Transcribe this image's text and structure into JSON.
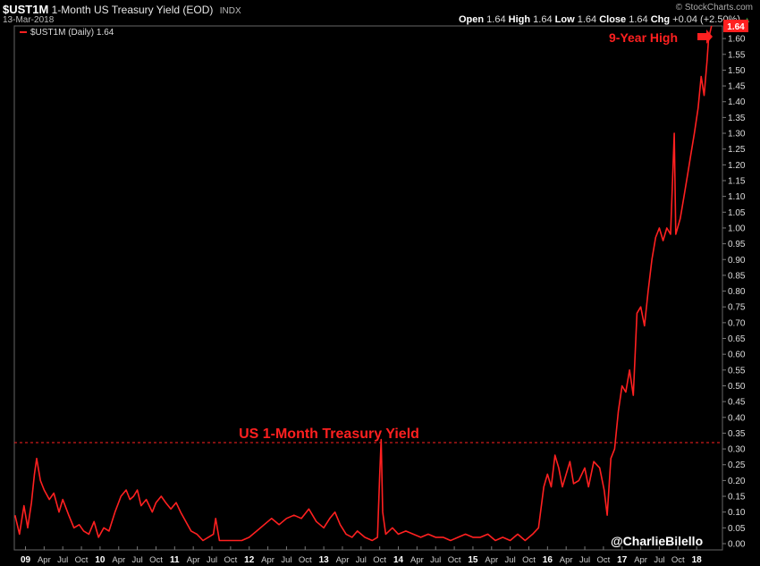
{
  "header": {
    "symbol": "$UST1M",
    "description": "1-Month US Treasury Yield (EOD)",
    "index": "INDX",
    "date": "13-Mar-2018",
    "brand": "© StockCharts.com",
    "open_label": "Open",
    "open": "1.64",
    "high_label": "High",
    "high": "1.64",
    "low_label": "Low",
    "low": "1.64",
    "close_label": "Close",
    "close": "1.64",
    "chg_label": "Chg",
    "chg": "+0.04 (+2.50%)",
    "up_arrow": "▲"
  },
  "legend": {
    "text": "$UST1M (Daily) 1.64"
  },
  "watermark": "@CharlieBilello",
  "colors": {
    "series": "#ff2020",
    "background": "#000000",
    "reference": "#ff2020",
    "price_tag": "#ff2020"
  },
  "chart_data": {
    "type": "line",
    "title": "US 1-Month Treasury Yield",
    "annotation": "9-Year High",
    "last_value_label": "1.64",
    "ylim": [
      0,
      1.66
    ],
    "reference_line": 0.32,
    "grid": false,
    "y_ticks": [
      "0.00",
      "0.05",
      "0.10",
      "0.15",
      "0.20",
      "0.25",
      "0.30",
      "0.35",
      "0.40",
      "0.45",
      "0.50",
      "0.55",
      "0.60",
      "0.65",
      "0.70",
      "0.75",
      "0.80",
      "0.85",
      "0.90",
      "0.95",
      "1.00",
      "1.05",
      "1.10",
      "1.15",
      "1.20",
      "1.25",
      "1.30",
      "1.35",
      "1.40",
      "1.45",
      "1.50",
      "1.55",
      "1.60"
    ],
    "x_ticks": [
      {
        "label": "09",
        "t": 2009.0,
        "year": true
      },
      {
        "label": "Apr",
        "t": 2009.25
      },
      {
        "label": "Jul",
        "t": 2009.5
      },
      {
        "label": "Oct",
        "t": 2009.75
      },
      {
        "label": "10",
        "t": 2010.0,
        "year": true
      },
      {
        "label": "Apr",
        "t": 2010.25
      },
      {
        "label": "Jul",
        "t": 2010.5
      },
      {
        "label": "Oct",
        "t": 2010.75
      },
      {
        "label": "11",
        "t": 2011.0,
        "year": true
      },
      {
        "label": "Apr",
        "t": 2011.25
      },
      {
        "label": "Jul",
        "t": 2011.5
      },
      {
        "label": "Oct",
        "t": 2011.75
      },
      {
        "label": "12",
        "t": 2012.0,
        "year": true
      },
      {
        "label": "Apr",
        "t": 2012.25
      },
      {
        "label": "Jul",
        "t": 2012.5
      },
      {
        "label": "Oct",
        "t": 2012.75
      },
      {
        "label": "13",
        "t": 2013.0,
        "year": true
      },
      {
        "label": "Apr",
        "t": 2013.25
      },
      {
        "label": "Jul",
        "t": 2013.5
      },
      {
        "label": "Oct",
        "t": 2013.75
      },
      {
        "label": "14",
        "t": 2014.0,
        "year": true
      },
      {
        "label": "Apr",
        "t": 2014.25
      },
      {
        "label": "Jul",
        "t": 2014.5
      },
      {
        "label": "Oct",
        "t": 2014.75
      },
      {
        "label": "15",
        "t": 2015.0,
        "year": true
      },
      {
        "label": "Apr",
        "t": 2015.25
      },
      {
        "label": "Jul",
        "t": 2015.5
      },
      {
        "label": "Oct",
        "t": 2015.75
      },
      {
        "label": "16",
        "t": 2016.0,
        "year": true
      },
      {
        "label": "Apr",
        "t": 2016.25
      },
      {
        "label": "Jul",
        "t": 2016.5
      },
      {
        "label": "Oct",
        "t": 2016.75
      },
      {
        "label": "17",
        "t": 2017.0,
        "year": true
      },
      {
        "label": "Apr",
        "t": 2017.25
      },
      {
        "label": "Jul",
        "t": 2017.5
      },
      {
        "label": "Oct",
        "t": 2017.75
      },
      {
        "label": "18",
        "t": 2018.0,
        "year": true
      }
    ],
    "series": [
      {
        "values": [
          [
            2008.86,
            0.09
          ],
          [
            2008.92,
            0.03
          ],
          [
            2008.98,
            0.12
          ],
          [
            2009.03,
            0.05
          ],
          [
            2009.08,
            0.13
          ],
          [
            2009.12,
            0.22
          ],
          [
            2009.15,
            0.27
          ],
          [
            2009.2,
            0.2
          ],
          [
            2009.25,
            0.17
          ],
          [
            2009.32,
            0.14
          ],
          [
            2009.38,
            0.16
          ],
          [
            2009.45,
            0.1
          ],
          [
            2009.5,
            0.14
          ],
          [
            2009.58,
            0.09
          ],
          [
            2009.65,
            0.05
          ],
          [
            2009.72,
            0.06
          ],
          [
            2009.78,
            0.04
          ],
          [
            2009.85,
            0.03
          ],
          [
            2009.92,
            0.07
          ],
          [
            2009.98,
            0.02
          ],
          [
            2010.05,
            0.05
          ],
          [
            2010.12,
            0.04
          ],
          [
            2010.2,
            0.1
          ],
          [
            2010.28,
            0.15
          ],
          [
            2010.35,
            0.17
          ],
          [
            2010.4,
            0.14
          ],
          [
            2010.45,
            0.15
          ],
          [
            2010.5,
            0.17
          ],
          [
            2010.55,
            0.12
          ],
          [
            2010.62,
            0.14
          ],
          [
            2010.7,
            0.1
          ],
          [
            2010.75,
            0.13
          ],
          [
            2010.82,
            0.15
          ],
          [
            2010.88,
            0.13
          ],
          [
            2010.95,
            0.11
          ],
          [
            2011.02,
            0.13
          ],
          [
            2011.08,
            0.1
          ],
          [
            2011.15,
            0.07
          ],
          [
            2011.22,
            0.04
          ],
          [
            2011.3,
            0.03
          ],
          [
            2011.38,
            0.01
          ],
          [
            2011.45,
            0.02
          ],
          [
            2011.52,
            0.03
          ],
          [
            2011.55,
            0.08
          ],
          [
            2011.6,
            0.01
          ],
          [
            2011.7,
            0.01
          ],
          [
            2011.8,
            0.01
          ],
          [
            2011.9,
            0.01
          ],
          [
            2012.0,
            0.02
          ],
          [
            2012.1,
            0.04
          ],
          [
            2012.2,
            0.06
          ],
          [
            2012.3,
            0.08
          ],
          [
            2012.4,
            0.06
          ],
          [
            2012.5,
            0.08
          ],
          [
            2012.6,
            0.09
          ],
          [
            2012.7,
            0.08
          ],
          [
            2012.8,
            0.11
          ],
          [
            2012.9,
            0.07
          ],
          [
            2013.0,
            0.05
          ],
          [
            2013.08,
            0.08
          ],
          [
            2013.15,
            0.1
          ],
          [
            2013.22,
            0.06
          ],
          [
            2013.3,
            0.03
          ],
          [
            2013.38,
            0.02
          ],
          [
            2013.45,
            0.04
          ],
          [
            2013.55,
            0.02
          ],
          [
            2013.65,
            0.01
          ],
          [
            2013.72,
            0.02
          ],
          [
            2013.75,
            0.22
          ],
          [
            2013.77,
            0.33
          ],
          [
            2013.79,
            0.1
          ],
          [
            2013.83,
            0.03
          ],
          [
            2013.92,
            0.05
          ],
          [
            2014.0,
            0.03
          ],
          [
            2014.1,
            0.04
          ],
          [
            2014.2,
            0.03
          ],
          [
            2014.3,
            0.02
          ],
          [
            2014.4,
            0.03
          ],
          [
            2014.5,
            0.02
          ],
          [
            2014.6,
            0.02
          ],
          [
            2014.7,
            0.01
          ],
          [
            2014.8,
            0.02
          ],
          [
            2014.9,
            0.03
          ],
          [
            2015.0,
            0.02
          ],
          [
            2015.1,
            0.02
          ],
          [
            2015.2,
            0.03
          ],
          [
            2015.3,
            0.01
          ],
          [
            2015.4,
            0.02
          ],
          [
            2015.5,
            0.01
          ],
          [
            2015.6,
            0.03
          ],
          [
            2015.7,
            0.01
          ],
          [
            2015.8,
            0.03
          ],
          [
            2015.88,
            0.05
          ],
          [
            2015.95,
            0.18
          ],
          [
            2016.0,
            0.22
          ],
          [
            2016.05,
            0.18
          ],
          [
            2016.1,
            0.28
          ],
          [
            2016.15,
            0.24
          ],
          [
            2016.2,
            0.18
          ],
          [
            2016.25,
            0.22
          ],
          [
            2016.3,
            0.26
          ],
          [
            2016.35,
            0.19
          ],
          [
            2016.42,
            0.2
          ],
          [
            2016.5,
            0.24
          ],
          [
            2016.55,
            0.18
          ],
          [
            2016.62,
            0.26
          ],
          [
            2016.7,
            0.24
          ],
          [
            2016.76,
            0.17
          ],
          [
            2016.8,
            0.09
          ],
          [
            2016.85,
            0.27
          ],
          [
            2016.9,
            0.3
          ],
          [
            2016.95,
            0.42
          ],
          [
            2017.0,
            0.5
          ],
          [
            2017.05,
            0.48
          ],
          [
            2017.1,
            0.55
          ],
          [
            2017.15,
            0.47
          ],
          [
            2017.2,
            0.73
          ],
          [
            2017.25,
            0.75
          ],
          [
            2017.3,
            0.69
          ],
          [
            2017.35,
            0.8
          ],
          [
            2017.4,
            0.9
          ],
          [
            2017.45,
            0.97
          ],
          [
            2017.5,
            1.0
          ],
          [
            2017.55,
            0.96
          ],
          [
            2017.6,
            1.0
          ],
          [
            2017.65,
            0.98
          ],
          [
            2017.7,
            1.3
          ],
          [
            2017.72,
            0.98
          ],
          [
            2017.78,
            1.03
          ],
          [
            2017.83,
            1.1
          ],
          [
            2017.88,
            1.17
          ],
          [
            2017.92,
            1.23
          ],
          [
            2017.97,
            1.3
          ],
          [
            2018.02,
            1.38
          ],
          [
            2018.06,
            1.48
          ],
          [
            2018.1,
            1.42
          ],
          [
            2018.14,
            1.53
          ],
          [
            2018.16,
            1.6
          ],
          [
            2018.2,
            1.64
          ]
        ]
      }
    ]
  }
}
